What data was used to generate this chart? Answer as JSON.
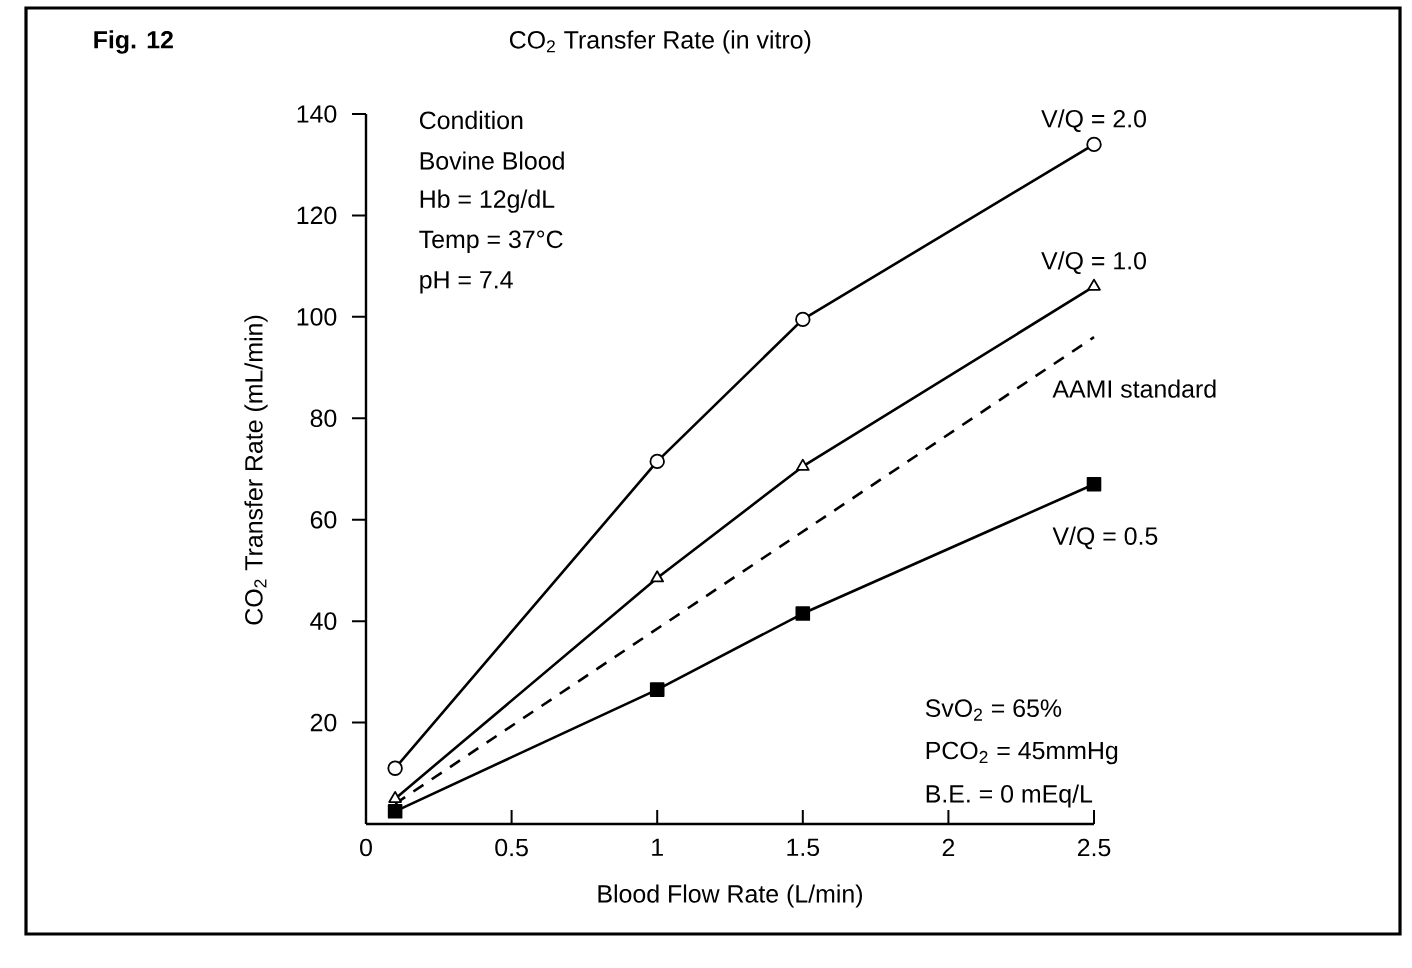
{
  "chart_data": {
    "type": "line",
    "title": "CO$_{2}$ Transfer Rate (in vitro)",
    "xlabel": "Blood Flow Rate (L/min)",
    "ylabel": "CO$_{2}$ Transfer Rate (mL/min)",
    "x": [
      0.1,
      1,
      1.5,
      2.5
    ],
    "series": [
      {
        "name": "V/Q = 2.0",
        "color": "#000000",
        "marker": "circle",
        "line_style": "solid",
        "values": [
          11,
          71.5,
          99.5,
          134
        ]
      },
      {
        "name": "V/Q = 1.0",
        "color": "#000000",
        "marker": "triangle",
        "line_style": "solid",
        "values": [
          5,
          48.5,
          70.5,
          106
        ]
      },
      {
        "name": "AAMI standard",
        "color": "#000000",
        "marker": "none",
        "line_style": "dashed",
        "x": [
          0.1,
          2.5
        ],
        "values": [
          4,
          96
        ]
      },
      {
        "name": "V/Q = 0.5",
        "color": "#000000",
        "marker": "square",
        "line_style": "solid",
        "values": [
          2.5,
          26.5,
          41.5,
          67
        ]
      }
    ],
    "xlim": [
      0,
      2.5
    ],
    "ylim": [
      0,
      140
    ],
    "xticks": [
      0,
      0.5,
      1,
      1.5,
      2,
      2.5
    ],
    "yticks": [
      20,
      40,
      60,
      80,
      100,
      120,
      140
    ],
    "annotations": [
      "Fig. 12",
      "Condition",
      "Bovine Blood",
      "Hb     = 12g/dL",
      "Temp  = 37°C",
      "pH     = 7.4",
      "SvO$_{2}$  = 65%",
      "PCO$_{2}$ = 45mmHg",
      "B.E.    = 0 mEq/L"
    ]
  }
}
